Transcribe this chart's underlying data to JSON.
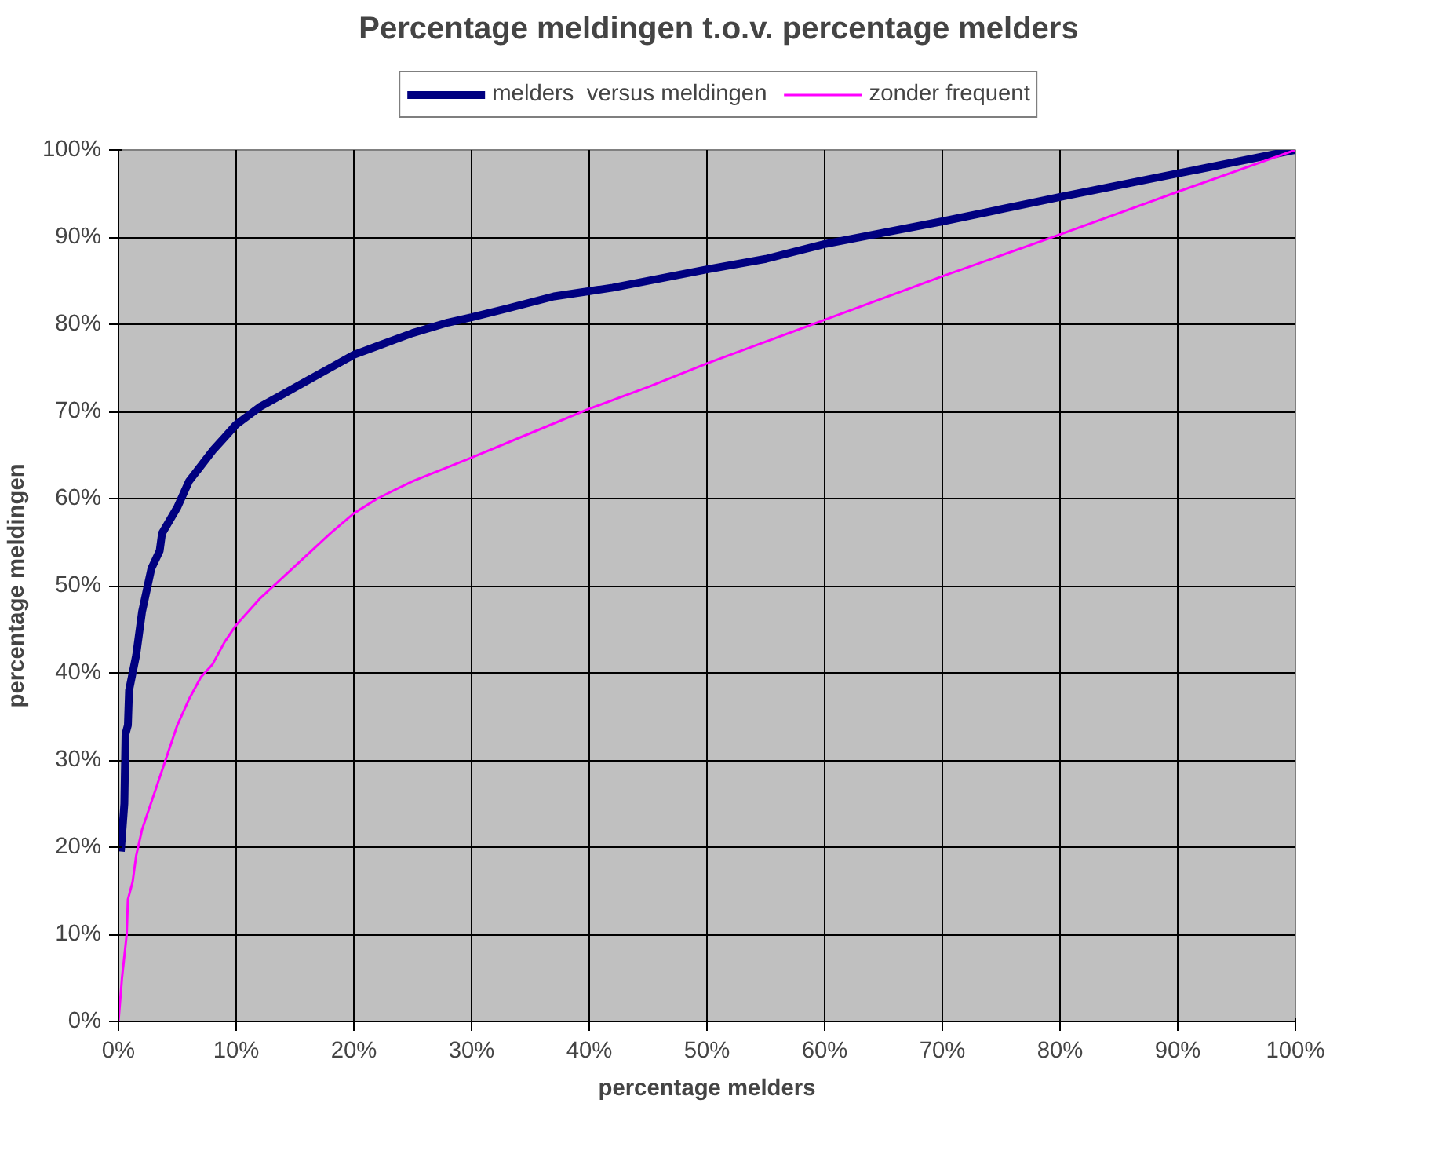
{
  "chart_data": {
    "type": "line",
    "title": "Percentage meldingen t.o.v. percentage melders",
    "xlabel": "percentage melders",
    "ylabel": "percentage meldingen",
    "xlim": [
      0,
      100
    ],
    "ylim": [
      0,
      100
    ],
    "xticks": [
      {
        "value": 0,
        "label": "0%"
      },
      {
        "value": 10,
        "label": "10%"
      },
      {
        "value": 20,
        "label": "20%"
      },
      {
        "value": 30,
        "label": "30%"
      },
      {
        "value": 40,
        "label": "40%"
      },
      {
        "value": 50,
        "label": "50%"
      },
      {
        "value": 60,
        "label": "60%"
      },
      {
        "value": 70,
        "label": "70%"
      },
      {
        "value": 80,
        "label": "80%"
      },
      {
        "value": 90,
        "label": "90%"
      },
      {
        "value": 100,
        "label": "100%"
      }
    ],
    "yticks": [
      {
        "value": 0,
        "label": "0%"
      },
      {
        "value": 10,
        "label": "10%"
      },
      {
        "value": 20,
        "label": "20%"
      },
      {
        "value": 30,
        "label": "30%"
      },
      {
        "value": 40,
        "label": "40%"
      },
      {
        "value": 50,
        "label": "50%"
      },
      {
        "value": 60,
        "label": "60%"
      },
      {
        "value": 70,
        "label": "70%"
      },
      {
        "value": 80,
        "label": "80%"
      },
      {
        "value": 90,
        "label": "90%"
      },
      {
        "value": 100,
        "label": "100%"
      }
    ],
    "grid": true,
    "legend": "top",
    "marker": "none",
    "line_style": "solid",
    "series": [
      {
        "name": "melders  versus meldingen",
        "color": "#000080",
        "x": [
          0.2,
          0.5,
          0.6,
          0.8,
          0.9,
          1.5,
          2,
          2.8,
          3.5,
          3.7,
          5,
          6,
          8,
          9,
          10,
          12,
          14,
          16,
          18,
          20,
          22,
          25,
          28,
          30,
          33,
          37,
          42,
          50,
          55,
          60,
          65,
          70,
          80,
          90,
          100
        ],
        "values": [
          19.5,
          25,
          33,
          34,
          38,
          42,
          47,
          52,
          54,
          56,
          59,
          62,
          65.5,
          67,
          68.5,
          70.5,
          72,
          73.5,
          75,
          76.5,
          77.5,
          79,
          80.2,
          80.8,
          81.8,
          83.2,
          84.2,
          86.3,
          87.5,
          89.2,
          90.5,
          91.8,
          94.6,
          97.3,
          100
        ]
      },
      {
        "name": "zonder frequent",
        "color": "#ff00ff",
        "x": [
          0,
          0.3,
          0.7,
          0.8,
          1.2,
          1.5,
          2,
          3,
          4,
          5,
          6,
          7,
          8,
          9,
          10,
          12,
          14,
          16,
          18,
          20,
          22,
          25,
          30,
          35,
          40,
          45,
          50,
          55,
          60,
          70,
          80,
          90,
          100
        ],
        "values": [
          0,
          5,
          10,
          14,
          16,
          19,
          22,
          26,
          30,
          34,
          37,
          39.5,
          41,
          43.5,
          45.5,
          48.5,
          51,
          53.5,
          56,
          58.3,
          60,
          62,
          64.7,
          67.5,
          70.3,
          72.8,
          75.5,
          78,
          80.5,
          85.5,
          90.3,
          95.2,
          100
        ]
      }
    ]
  }
}
